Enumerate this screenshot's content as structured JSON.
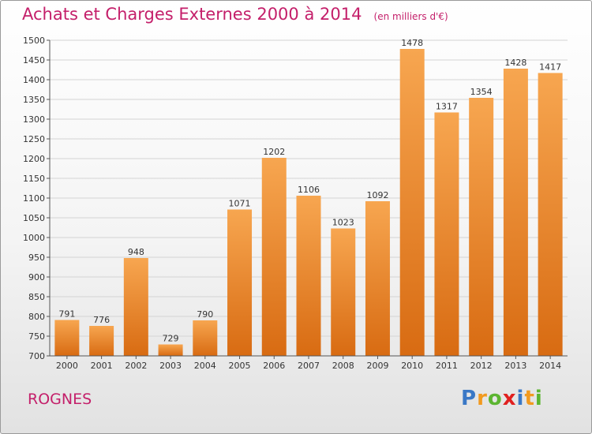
{
  "header": {
    "title": "Achats et Charges Externes 2000 à 2014",
    "unit": "(en milliers d'€)"
  },
  "footer": {
    "city": "ROGNES",
    "logo": [
      "P",
      "r",
      "o",
      "x",
      "i",
      "t",
      "i"
    ],
    "logo_colors": [
      "#3a78c6",
      "#f29a1f",
      "#5cb531",
      "#e0201f",
      "#3a78c6",
      "#f29a1f",
      "#5cb531"
    ]
  },
  "colors": {
    "bar_top": "#f7a650",
    "bar_bottom": "#d86b12",
    "title": "#c41f6a"
  },
  "chart_data": {
    "type": "bar",
    "categories": [
      "2000",
      "2001",
      "2002",
      "2003",
      "2004",
      "2005",
      "2006",
      "2007",
      "2008",
      "2009",
      "2010",
      "2011",
      "2012",
      "2013",
      "2014"
    ],
    "values": [
      791,
      776,
      948,
      729,
      790,
      1071,
      1202,
      1106,
      1023,
      1092,
      1478,
      1317,
      1354,
      1428,
      1417
    ],
    "title": "Achats et Charges Externes 2000 à 2014",
    "xlabel": "",
    "ylabel": "",
    "ylim": [
      700,
      1500
    ],
    "yticks": [
      700,
      750,
      800,
      850,
      900,
      950,
      1000,
      1050,
      1100,
      1150,
      1200,
      1250,
      1300,
      1350,
      1400,
      1450,
      1500
    ],
    "grid": true
  }
}
